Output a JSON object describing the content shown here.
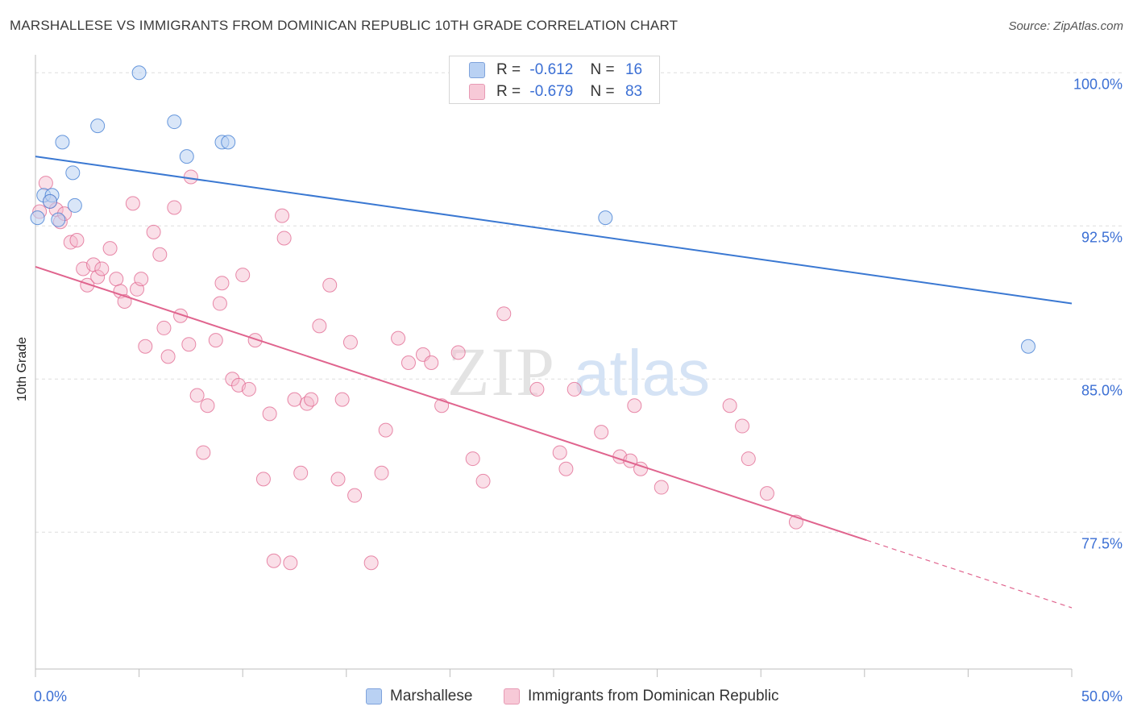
{
  "title": "MARSHALLESE VS IMMIGRANTS FROM DOMINICAN REPUBLIC 10TH GRADE CORRELATION CHART",
  "source": "Source: ZipAtlas.com",
  "watermark": {
    "zip": "ZIP",
    "atlas": "atlas"
  },
  "legend_top": {
    "row1": {
      "r_label": "R =",
      "r_value": "-0.612",
      "n_label": "N =",
      "n_value": "16"
    },
    "row2": {
      "r_label": "R =",
      "r_value": "-0.679",
      "n_label": "N =",
      "n_value": "83"
    }
  },
  "legend_bottom": {
    "series1": "Marshallese",
    "series2": "Immigrants from Dominican Republic"
  },
  "colors": {
    "blue": "#3a78d2",
    "blue_fill": "#b9d1f3",
    "pink": "#e0648e",
    "pink_fill": "#f4b8cb",
    "tick_text": "#3b6fd4"
  },
  "chart_data": {
    "type": "scatter",
    "title": "MARSHALLESE VS IMMIGRANTS FROM DOMINICAN REPUBLIC 10TH GRADE CORRELATION CHART",
    "xlabel": "",
    "ylabel": "10th Grade",
    "xlim": [
      0,
      50
    ],
    "ylim": [
      70.8,
      100.8
    ],
    "x_tick_labels": [
      {
        "value": 0,
        "label": "0.0%"
      },
      {
        "value": 50,
        "label": "50.0%"
      }
    ],
    "y_tick_labels": [
      {
        "value": 100,
        "label": "100.0%"
      },
      {
        "value": 92.5,
        "label": "92.5%"
      },
      {
        "value": 85,
        "label": "85.0%"
      },
      {
        "value": 77.5,
        "label": "77.5%"
      }
    ],
    "series": [
      {
        "name": "Marshallese",
        "color": "#3a78d2",
        "points": [
          [
            0.1,
            92.9
          ],
          [
            0.4,
            94.0
          ],
          [
            0.8,
            94.0
          ],
          [
            1.1,
            92.8
          ],
          [
            1.3,
            96.6
          ],
          [
            1.8,
            95.1
          ],
          [
            1.9,
            93.5
          ],
          [
            3.0,
            97.4
          ],
          [
            5.0,
            100.0
          ],
          [
            6.7,
            97.6
          ],
          [
            7.3,
            95.9
          ],
          [
            9.0,
            96.6
          ],
          [
            9.3,
            96.6
          ],
          [
            27.5,
            92.9
          ],
          [
            47.9,
            86.6
          ],
          [
            0.7,
            93.7
          ]
        ],
        "trend": {
          "x": [
            0,
            50
          ],
          "y": [
            95.9,
            88.7
          ],
          "dashed_from": null
        }
      },
      {
        "name": "Immigrants from Dominican Republic",
        "color": "#e0648e",
        "points": [
          [
            0.2,
            93.2
          ],
          [
            0.5,
            94.6
          ],
          [
            0.7,
            93.7
          ],
          [
            1.0,
            93.3
          ],
          [
            1.2,
            92.7
          ],
          [
            1.4,
            93.1
          ],
          [
            1.7,
            91.7
          ],
          [
            2.0,
            91.8
          ],
          [
            2.3,
            90.4
          ],
          [
            2.5,
            89.6
          ],
          [
            2.8,
            90.6
          ],
          [
            3.0,
            90.0
          ],
          [
            3.2,
            90.4
          ],
          [
            3.6,
            91.4
          ],
          [
            3.9,
            89.9
          ],
          [
            4.1,
            89.3
          ],
          [
            4.3,
            88.8
          ],
          [
            4.7,
            93.6
          ],
          [
            4.9,
            89.4
          ],
          [
            5.1,
            89.9
          ],
          [
            5.3,
            86.6
          ],
          [
            5.7,
            92.2
          ],
          [
            6.0,
            91.1
          ],
          [
            6.2,
            87.5
          ],
          [
            6.4,
            86.1
          ],
          [
            6.7,
            93.4
          ],
          [
            7.0,
            88.1
          ],
          [
            7.4,
            86.7
          ],
          [
            7.5,
            94.9
          ],
          [
            7.8,
            84.2
          ],
          [
            8.1,
            81.4
          ],
          [
            8.3,
            83.7
          ],
          [
            8.7,
            86.9
          ],
          [
            8.9,
            88.7
          ],
          [
            9.0,
            89.7
          ],
          [
            9.5,
            85.0
          ],
          [
            9.8,
            84.7
          ],
          [
            10.0,
            90.1
          ],
          [
            10.3,
            84.5
          ],
          [
            10.6,
            86.9
          ],
          [
            11.0,
            80.1
          ],
          [
            11.3,
            83.3
          ],
          [
            11.5,
            76.1
          ],
          [
            11.9,
            93.0
          ],
          [
            12.0,
            91.9
          ],
          [
            12.3,
            76.0
          ],
          [
            12.5,
            84.0
          ],
          [
            12.8,
            80.4
          ],
          [
            13.1,
            83.8
          ],
          [
            13.3,
            84.0
          ],
          [
            13.7,
            87.6
          ],
          [
            14.2,
            89.6
          ],
          [
            14.6,
            80.1
          ],
          [
            14.8,
            84.0
          ],
          [
            15.2,
            86.8
          ],
          [
            15.4,
            79.3
          ],
          [
            16.2,
            76.0
          ],
          [
            16.7,
            80.4
          ],
          [
            16.9,
            82.5
          ],
          [
            17.5,
            87.0
          ],
          [
            18.0,
            85.8
          ],
          [
            18.7,
            86.2
          ],
          [
            19.1,
            85.8
          ],
          [
            19.6,
            83.7
          ],
          [
            20.4,
            86.3
          ],
          [
            21.1,
            81.1
          ],
          [
            21.6,
            80.0
          ],
          [
            22.6,
            88.2
          ],
          [
            24.2,
            84.5
          ],
          [
            25.3,
            81.4
          ],
          [
            25.6,
            80.6
          ],
          [
            26.0,
            84.5
          ],
          [
            27.3,
            82.4
          ],
          [
            28.2,
            81.2
          ],
          [
            28.7,
            81.0
          ],
          [
            28.9,
            83.7
          ],
          [
            29.2,
            80.6
          ],
          [
            30.2,
            79.7
          ],
          [
            33.5,
            83.7
          ],
          [
            34.1,
            82.7
          ],
          [
            34.4,
            81.1
          ],
          [
            35.3,
            79.4
          ],
          [
            36.7,
            78.0
          ]
        ],
        "trend": {
          "x": [
            0,
            50
          ],
          "y": [
            90.5,
            73.8
          ],
          "dashed_from": 40.1
        }
      }
    ]
  }
}
